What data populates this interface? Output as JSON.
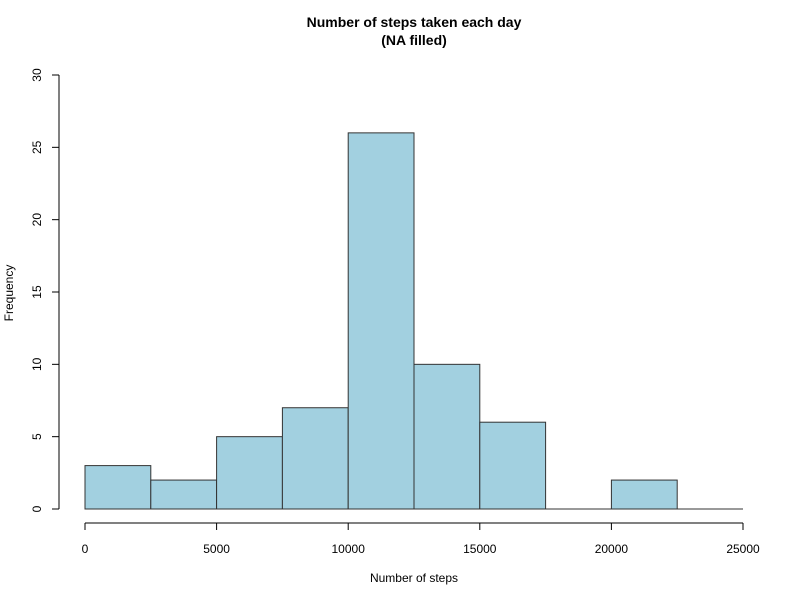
{
  "chart_data": {
    "type": "bar",
    "title": "Number of steps taken each day",
    "subtitle": "(NA filled)",
    "xlabel": "Number of steps",
    "ylabel": "Frequency",
    "bins": [
      {
        "start": 0,
        "end": 2500,
        "count": 3
      },
      {
        "start": 2500,
        "end": 5000,
        "count": 2
      },
      {
        "start": 5000,
        "end": 7500,
        "count": 5
      },
      {
        "start": 7500,
        "end": 10000,
        "count": 7
      },
      {
        "start": 10000,
        "end": 12500,
        "count": 26
      },
      {
        "start": 12500,
        "end": 15000,
        "count": 10
      },
      {
        "start": 15000,
        "end": 17500,
        "count": 6
      },
      {
        "start": 17500,
        "end": 20000,
        "count": 0
      },
      {
        "start": 20000,
        "end": 22500,
        "count": 2
      },
      {
        "start": 22500,
        "end": 25000,
        "count": 0
      }
    ],
    "xlim": [
      0,
      25000
    ],
    "ylim": [
      0,
      30
    ],
    "x_ticks": [
      "0",
      "5000",
      "10000",
      "15000",
      "20000",
      "25000"
    ],
    "y_ticks": [
      "0",
      "5",
      "10",
      "15",
      "20",
      "25",
      "30"
    ],
    "bar_color": "#a2d0e0",
    "grid": false
  }
}
